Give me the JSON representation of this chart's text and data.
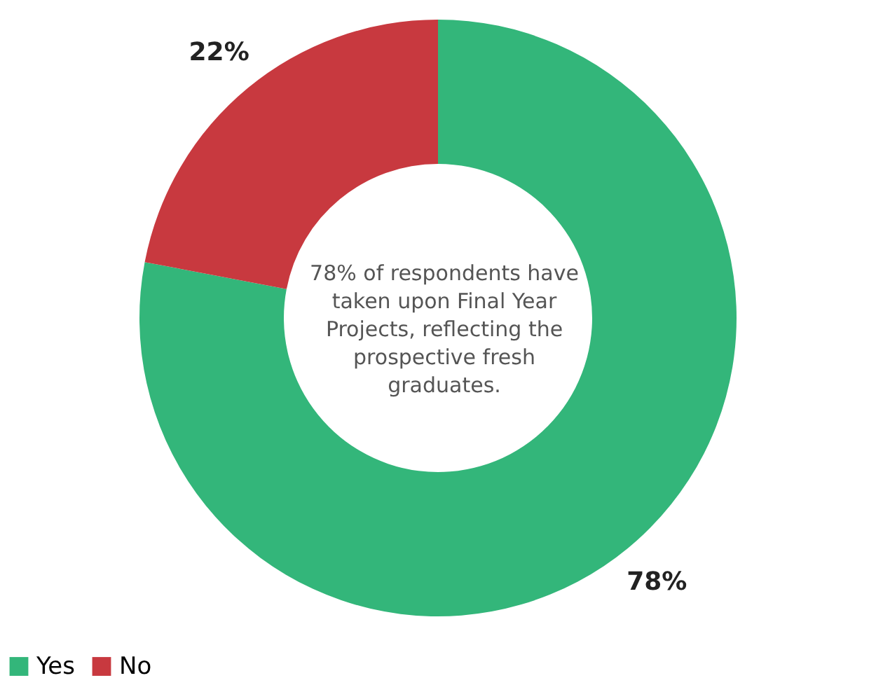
{
  "chart_data": {
    "type": "donut",
    "categories": [
      "Yes",
      "No"
    ],
    "values": [
      78,
      22
    ],
    "colors": [
      "#33b67a",
      "#c8393f"
    ],
    "value_labels": [
      "78%",
      "22%"
    ],
    "annotations": [
      "78% of respondents have taken upon Final Year Projects, reflecting the prospective fresh graduates."
    ],
    "legend": "bottom"
  }
}
